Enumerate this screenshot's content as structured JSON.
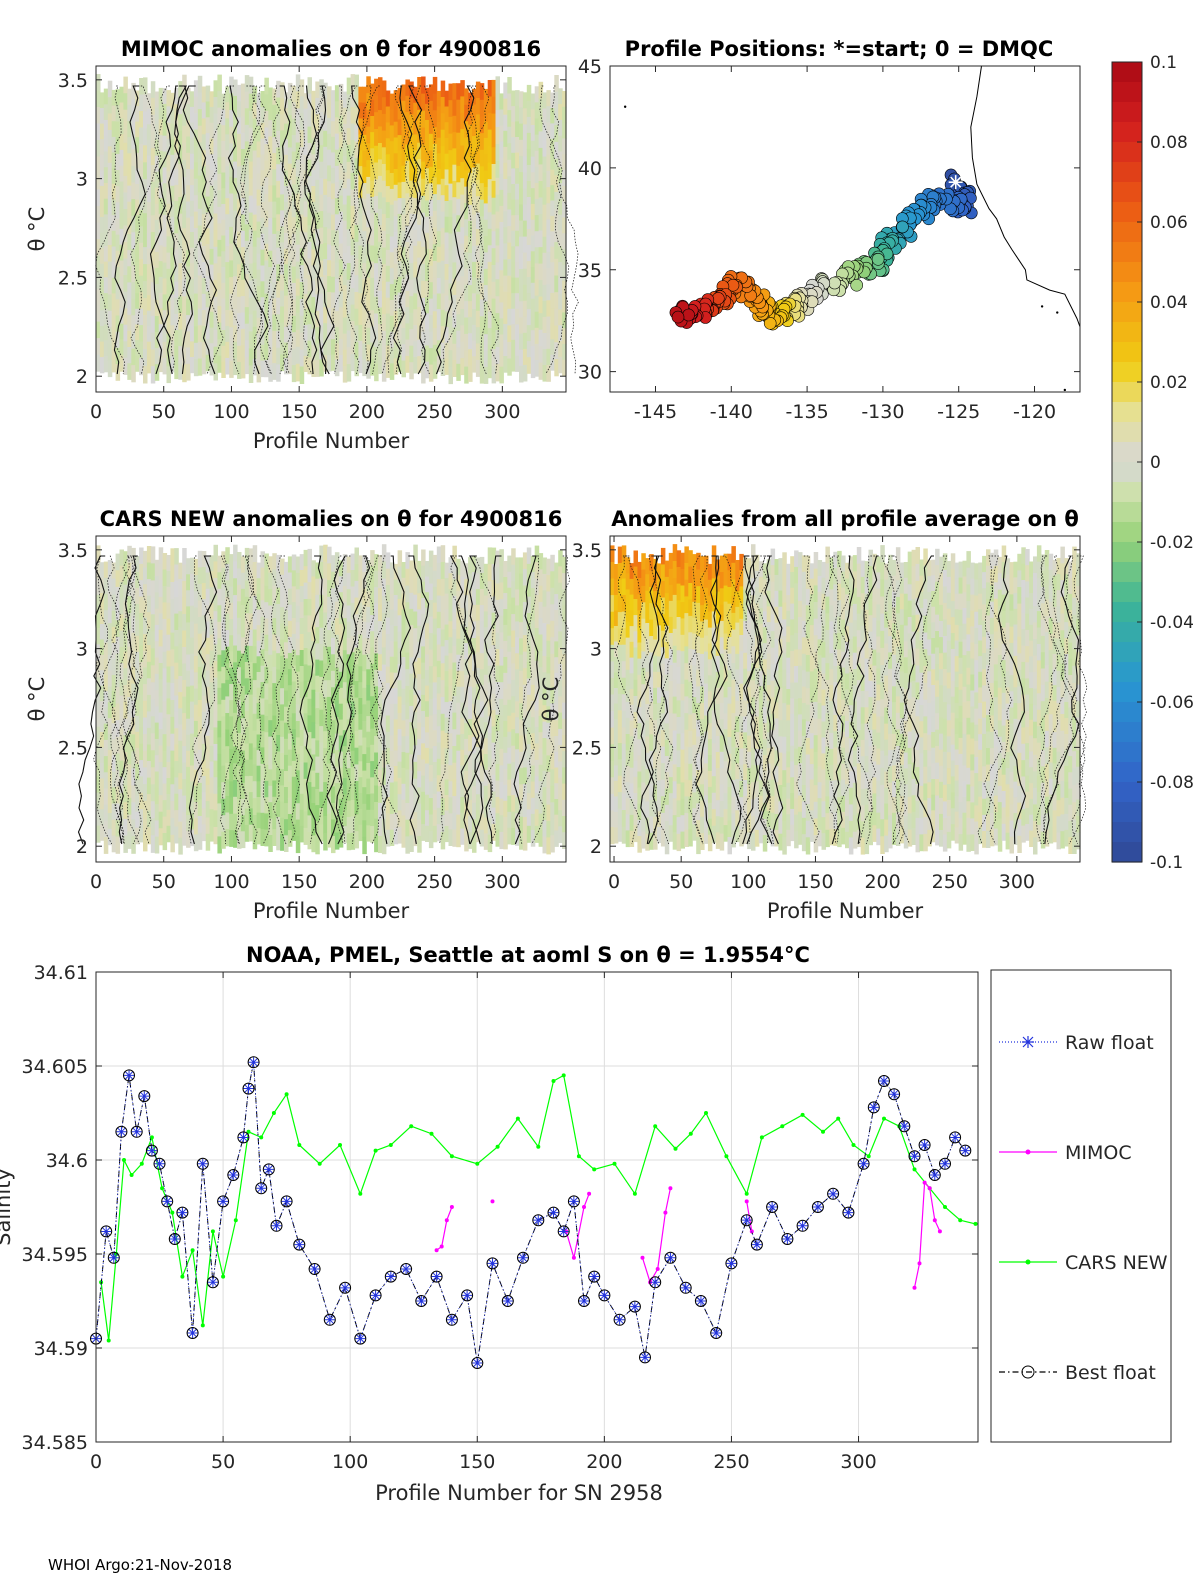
{
  "chart_data": [
    {
      "type": "heatmap",
      "title": "MIMOC anomalies on θ  for 4900816",
      "xlabel": "Profile Number",
      "ylabel": "θ °C",
      "xlim": [
        0,
        347
      ],
      "ylim": [
        1.92,
        3.57
      ],
      "xticks": [
        "0",
        "50",
        "100",
        "150",
        "200",
        "250",
        "300"
      ],
      "yticks": [
        "2",
        "2.5",
        "3",
        "3.5"
      ],
      "warm_region": "profiles 200-290 above 3.0 °C, anomaly up to +0.05"
    },
    {
      "type": "scatter",
      "title": "Profile Positions: *=start; 0 = DMQC",
      "xlim": [
        -148,
        -117
      ],
      "ylim": [
        29,
        45
      ],
      "xticks": [
        "-145",
        "-140",
        "-135",
        "-130",
        "-125",
        "-120"
      ],
      "yticks": [
        "30",
        "35",
        "40",
        "45"
      ],
      "path_points": [
        [
          -125.2,
          39.3
        ],
        [
          -124.5,
          38.0
        ],
        [
          -126.5,
          38.5
        ],
        [
          -128,
          37.5
        ],
        [
          -129.5,
          36.5
        ],
        [
          -130.2,
          35.3
        ],
        [
          -131.8,
          34.8
        ],
        [
          -133.5,
          34.2
        ],
        [
          -135.2,
          33.4
        ],
        [
          -136.5,
          33.0
        ],
        [
          -137.5,
          32.7
        ],
        [
          -138.5,
          33.6
        ],
        [
          -139.5,
          34.3
        ],
        [
          -140.8,
          33.5
        ],
        [
          -142.0,
          33.0
        ],
        [
          -143.5,
          32.7
        ]
      ],
      "colorbar": {
        "ticks": [
          "0.1",
          "0.08",
          "0.06",
          "0.04",
          "0.02",
          "0",
          "-0.02",
          "-0.04",
          "-0.06",
          "-0.08",
          "-0.1"
        ],
        "range": [
          -0.1,
          0.1
        ]
      }
    },
    {
      "type": "heatmap",
      "title": "CARS NEW anomalies on θ for 4900816",
      "xlabel": "Profile Number",
      "ylabel": "θ °C",
      "xlim": [
        0,
        347
      ],
      "ylim": [
        1.92,
        3.57
      ],
      "xticks": [
        "0",
        "50",
        "100",
        "150",
        "200",
        "250",
        "300"
      ],
      "yticks": [
        "2",
        "2.5",
        "3",
        "3.5"
      ]
    },
    {
      "type": "heatmap",
      "title": "Anomalies from all profile average on θ",
      "xlabel": "Profile Number",
      "ylabel": "θ °C",
      "xlim": [
        -3,
        347
      ],
      "ylim": [
        1.92,
        3.57
      ],
      "xticks": [
        "0",
        "50",
        "100",
        "150",
        "200",
        "250",
        "300"
      ],
      "yticks": [
        "2",
        "2.5",
        "3",
        "3.5"
      ],
      "warm_region": "profiles 0-95 above 3.2 °C"
    },
    {
      "type": "line",
      "title": "NOAA, PMEL, Seattle at aoml S on θ = 1.9554°C",
      "xlabel": "Profile Number for SN 2958",
      "ylabel": "Salinity",
      "xlim": [
        0,
        347
      ],
      "ylim": [
        34.585,
        34.61
      ],
      "xticks": [
        "0",
        "50",
        "100",
        "150",
        "200",
        "250",
        "300"
      ],
      "yticks": [
        "34.585",
        "34.59",
        "34.595",
        "34.6",
        "34.605",
        "34.61"
      ],
      "legend": [
        "Raw float",
        "MIMOC",
        "CARS NEW",
        "Best float"
      ],
      "series": [
        {
          "name": "Best float",
          "x": [
            0,
            4,
            7,
            10,
            13,
            16,
            19,
            22,
            25,
            28,
            31,
            34,
            38,
            42,
            46,
            50,
            54,
            58,
            60,
            62,
            65,
            68,
            71,
            75,
            80,
            86,
            92,
            98,
            104,
            110,
            116,
            122,
            128,
            134,
            140,
            146,
            150,
            156,
            162,
            168,
            174,
            180,
            184,
            188,
            192,
            196,
            200,
            206,
            212,
            216,
            220,
            226,
            232,
            238,
            244,
            250,
            256,
            260,
            266,
            272,
            278,
            284,
            290,
            296,
            302,
            306,
            310,
            314,
            318,
            322,
            326,
            330,
            334,
            338,
            342
          ],
          "values": [
            34.5905,
            34.5962,
            34.5948,
            34.6015,
            34.6045,
            34.6015,
            34.6034,
            34.6005,
            34.5998,
            34.5978,
            34.5958,
            34.5972,
            34.5908,
            34.5998,
            34.5935,
            34.5978,
            34.5992,
            34.6012,
            34.6038,
            34.6052,
            34.5985,
            34.5995,
            34.5965,
            34.5978,
            34.5955,
            34.5942,
            34.5915,
            34.5932,
            34.5905,
            34.5928,
            34.5938,
            34.5942,
            34.5925,
            34.5938,
            34.5915,
            34.5928,
            34.5892,
            34.5945,
            34.5925,
            34.5948,
            34.5968,
            34.5972,
            34.5962,
            34.5978,
            34.5925,
            34.5938,
            34.5928,
            34.5915,
            34.5922,
            34.5895,
            34.5935,
            34.5948,
            34.5932,
            34.5925,
            34.5908,
            34.5945,
            34.5968,
            34.5955,
            34.5975,
            34.5958,
            34.5965,
            34.5975,
            34.5982,
            34.5972,
            34.5998,
            34.6028,
            34.6042,
            34.6035,
            34.6018,
            34.6002,
            34.6008,
            34.5992,
            34.5998,
            34.6012,
            34.6005
          ]
        },
        {
          "name": "CARS NEW",
          "x": [
            2,
            5,
            8,
            11,
            14,
            18,
            22,
            26,
            30,
            34,
            38,
            42,
            46,
            50,
            55,
            60,
            65,
            70,
            75,
            80,
            88,
            96,
            104,
            110,
            116,
            124,
            132,
            140,
            150,
            158,
            166,
            174,
            180,
            184,
            190,
            196,
            204,
            212,
            220,
            228,
            234,
            240,
            248,
            256,
            262,
            270,
            278,
            286,
            292,
            298,
            304,
            310,
            316,
            322,
            328,
            334,
            340,
            346
          ],
          "values": [
            34.5935,
            34.5904,
            34.595,
            34.6,
            34.5992,
            34.5998,
            34.6012,
            34.5985,
            34.5972,
            34.5938,
            34.5952,
            34.5912,
            34.5962,
            34.5938,
            34.5968,
            34.6015,
            34.6012,
            34.6025,
            34.6035,
            34.6008,
            34.5998,
            34.6008,
            34.5982,
            34.6005,
            34.6008,
            34.6018,
            34.6014,
            34.6002,
            34.5998,
            34.6007,
            34.6022,
            34.6007,
            34.6042,
            34.6045,
            34.6002,
            34.5995,
            34.5998,
            34.5982,
            34.6018,
            34.6006,
            34.6014,
            34.6025,
            34.6002,
            34.5982,
            34.6012,
            34.6018,
            34.6024,
            34.6015,
            34.6022,
            34.6008,
            34.6002,
            34.6022,
            34.6018,
            34.5995,
            34.5985,
            34.5975,
            34.5968,
            34.5966
          ]
        },
        {
          "name": "MIMOC",
          "x": [
            134,
            136,
            138,
            140,
            156,
            185,
            188,
            192,
            194,
            215,
            218,
            221,
            224,
            226,
            256,
            258,
            322,
            324,
            326,
            328,
            330,
            332
          ],
          "values": [
            34.5952,
            34.5954,
            34.5968,
            34.5975,
            34.5978,
            34.5962,
            34.5948,
            34.5975,
            34.5982,
            34.5948,
            34.5935,
            34.5942,
            34.5972,
            34.5985,
            34.5978,
            34.5962,
            34.5932,
            34.5945,
            34.5988,
            34.5985,
            34.5968,
            34.5962
          ]
        }
      ]
    }
  ],
  "footer": "WHOI Argo:21-Nov-2018"
}
